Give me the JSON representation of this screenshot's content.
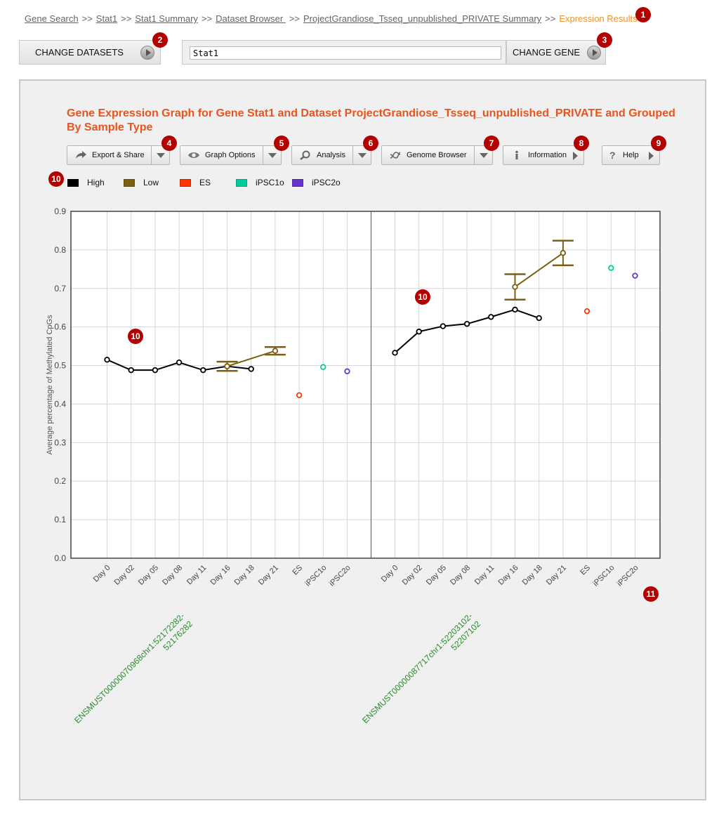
{
  "breadcrumb": {
    "items": [
      "Gene Search",
      "Stat1",
      "Stat1 Summary",
      "Dataset Browser ",
      "ProjectGrandiose_Tsseq_unpublished_PRIVATE Summary"
    ],
    "separator": ">>",
    "current": "Expression Results"
  },
  "controls": {
    "change_datasets_label": "CHANGE DATASETS",
    "gene_value": "Stat1",
    "change_gene_label": "CHANGE GENE"
  },
  "graph": {
    "title": "Gene Expression Graph for Gene Stat1 and Dataset ProjectGrandiose_Tsseq_unpublished_PRIVATE and Grouped By Sample Type"
  },
  "toolbar": {
    "export_label": "Export & Share",
    "graph_options_label": "Graph Options",
    "analysis_label": "Analysis",
    "genome_browser_label": "Genome Browser",
    "information_label": "Information",
    "help_label": "Help"
  },
  "badges": [
    "1",
    "2",
    "3",
    "4",
    "5",
    "6",
    "7",
    "8",
    "9",
    "10",
    "10",
    "10",
    "11"
  ],
  "legend": [
    {
      "label": "High",
      "color": "#000000"
    },
    {
      "label": "Low",
      "color": "#7a6010"
    },
    {
      "label": "ES",
      "color": "#ff3300"
    },
    {
      "label": "iPSC1o",
      "color": "#00cc99"
    },
    {
      "label": "iPSC2o",
      "color": "#6633cc"
    }
  ],
  "chart_data": {
    "type": "line",
    "ylabel": "Average percentage of Methylated CpGs",
    "ylim": [
      0,
      0.9
    ],
    "yticks": [
      "0.0",
      "0.1",
      "0.2",
      "0.3",
      "0.4",
      "0.5",
      "0.6",
      "0.7",
      "0.8",
      "0.9"
    ],
    "grid": true,
    "legend_placement": "top",
    "categories": [
      "Day 0",
      "Day 02",
      "Day 05",
      "Day 08",
      "Day 11",
      "Day 16",
      "Day 18",
      "Day 21",
      "ES",
      "iPSC1o",
      "iPSC2o"
    ],
    "panels": [
      {
        "label": "ENSMUST00000070968chr1:52172282-52176282",
        "series": [
          {
            "name": "High",
            "color": "#000000",
            "points": [
              [
                "Day 0",
                0.515
              ],
              [
                "Day 02",
                0.488
              ],
              [
                "Day 05",
                0.488
              ],
              [
                "Day 08",
                0.508
              ],
              [
                "Day 11",
                0.488
              ],
              [
                "Day 16",
                0.498
              ],
              [
                "Day 18",
                0.491
              ]
            ]
          },
          {
            "name": "Low",
            "color": "#7a6010",
            "points": [
              [
                "Day 16",
                0.498
              ],
              [
                "Day 21",
                0.538
              ]
            ],
            "error": [
              0.012,
              0.01
            ]
          },
          {
            "name": "ES",
            "color": "#ff3300",
            "points": [
              [
                "ES",
                0.423
              ]
            ]
          },
          {
            "name": "iPSC1o",
            "color": "#00cc99",
            "points": [
              [
                "iPSC1o",
                0.496
              ]
            ]
          },
          {
            "name": "iPSC2o",
            "color": "#6633cc",
            "points": [
              [
                "iPSC2o",
                0.485
              ]
            ]
          }
        ]
      },
      {
        "label": "ENSMUST00000087717chr1:52203102-52207102",
        "series": [
          {
            "name": "High",
            "color": "#000000",
            "points": [
              [
                "Day 0",
                0.533
              ],
              [
                "Day 02",
                0.588
              ],
              [
                "Day 05",
                0.602
              ],
              [
                "Day 08",
                0.608
              ],
              [
                "Day 11",
                0.626
              ],
              [
                "Day 16",
                0.645
              ],
              [
                "Day 18",
                0.623
              ]
            ]
          },
          {
            "name": "Low",
            "color": "#7a6010",
            "points": [
              [
                "Day 16",
                0.704
              ],
              [
                "Day 21",
                0.792
              ]
            ],
            "error": [
              0.033,
              0.032
            ]
          },
          {
            "name": "ES",
            "color": "#ff3300",
            "points": [
              [
                "ES",
                0.641
              ]
            ]
          },
          {
            "name": "iPSC1o",
            "color": "#00cc99",
            "points": [
              [
                "iPSC1o",
                0.753
              ]
            ]
          },
          {
            "name": "iPSC2o",
            "color": "#6633cc",
            "points": [
              [
                "iPSC2o",
                0.733
              ]
            ]
          }
        ]
      }
    ]
  }
}
